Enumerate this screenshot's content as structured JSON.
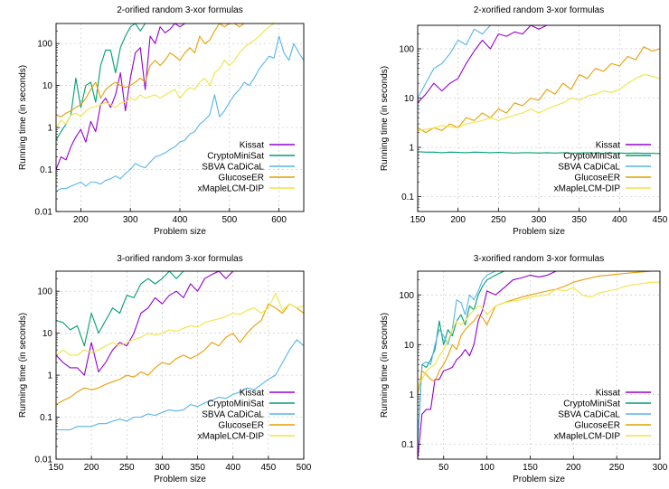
{
  "series_names": [
    "Kissat",
    "CryptoMiniSat",
    "SBVA CaDiCaL",
    "GlucoseER",
    "xMapleLCM-DIP"
  ],
  "series_colors": [
    "#9400d3",
    "#009e73",
    "#56b4e9",
    "#e69f00",
    "#f0e442"
  ],
  "chart_data": [
    {
      "type": "line",
      "title": "2-orified random 3-xor formulas",
      "xlabel": "Problem size",
      "ylabel": "Running time (in seconds)",
      "xscale": "linear",
      "yscale": "log",
      "xlim": [
        150,
        650
      ],
      "ylim": [
        0.01,
        300
      ],
      "xticks": [
        200,
        300,
        400,
        500,
        600
      ],
      "yticks": [
        0.01,
        0.1,
        1,
        10,
        100
      ],
      "ytick_labels": [
        "0.01",
        "0.1",
        "1",
        "10",
        "100"
      ],
      "grid": true,
      "legend": "bottom-right",
      "x": [
        150,
        160,
        170,
        180,
        190,
        200,
        210,
        220,
        230,
        240,
        250,
        260,
        270,
        280,
        290,
        300,
        310,
        320,
        330,
        340,
        350,
        360,
        370,
        380,
        390,
        400,
        410,
        420,
        430,
        440,
        450,
        460,
        470,
        480,
        490,
        500,
        510,
        520,
        530,
        540,
        550,
        560,
        570,
        580,
        590,
        600,
        610,
        620,
        630,
        640,
        650
      ],
      "series": [
        {
          "name": "Kissat",
          "values": [
            0.1,
            0.2,
            0.17,
            0.35,
            0.6,
            0.9,
            0.45,
            1.4,
            0.8,
            3.5,
            5,
            3,
            6,
            20,
            2.5,
            15,
            60,
            80,
            8,
            150,
            100,
            250,
            180,
            220,
            300,
            250,
            300,
            300,
            300,
            300,
            300,
            300,
            300,
            300,
            300,
            300,
            300,
            300,
            300,
            300,
            300,
            300,
            300,
            300,
            300,
            300,
            300,
            300,
            300,
            300,
            300
          ]
        },
        {
          "name": "CryptoMiniSat",
          "values": [
            0.5,
            0.8,
            1.2,
            2,
            15,
            3,
            10,
            12,
            4,
            30,
            70,
            70,
            20,
            80,
            150,
            250,
            300,
            200,
            300,
            300,
            300,
            300,
            300,
            300,
            300,
            300,
            300,
            300,
            300,
            300,
            300,
            300,
            300,
            300,
            300,
            300,
            300,
            300,
            300,
            300,
            300,
            300,
            300,
            300,
            300,
            300,
            300,
            300,
            300,
            300,
            300
          ]
        },
        {
          "name": "SBVA CaDiCaL",
          "values": [
            0.03,
            0.035,
            0.035,
            0.04,
            0.045,
            0.05,
            0.04,
            0.05,
            0.05,
            0.045,
            0.055,
            0.06,
            0.07,
            0.06,
            0.08,
            0.1,
            0.14,
            0.12,
            0.11,
            0.15,
            0.2,
            0.22,
            0.25,
            0.3,
            0.35,
            0.45,
            0.5,
            0.7,
            0.8,
            1.2,
            1.5,
            2,
            6,
            1.8,
            2.5,
            4,
            6,
            8,
            12,
            10,
            15,
            25,
            35,
            50,
            45,
            150,
            60,
            40,
            100,
            60,
            40
          ]
        },
        {
          "name": "GlucoseER",
          "values": [
            2,
            1.8,
            2.2,
            2.5,
            3,
            3.5,
            5,
            8,
            12,
            5,
            8,
            10,
            12,
            10,
            9,
            10,
            12,
            15,
            12,
            30,
            40,
            30,
            40,
            60,
            50,
            40,
            60,
            80,
            60,
            150,
            100,
            120,
            200,
            300,
            250,
            300,
            300,
            250,
            300,
            300,
            300,
            300,
            300,
            300,
            300,
            300,
            300,
            300,
            300,
            300,
            300
          ]
        },
        {
          "name": "xMapleLCM-DIP",
          "values": [
            1,
            1.5,
            1.2,
            2,
            2.2,
            1.8,
            2.5,
            3,
            3.2,
            3.5,
            4,
            3.5,
            3,
            3.8,
            4,
            5,
            4.5,
            6,
            5,
            5.5,
            6,
            5,
            6,
            7,
            8,
            5,
            7,
            9,
            8,
            12,
            15,
            10,
            20,
            25,
            40,
            30,
            40,
            60,
            80,
            100,
            120,
            150,
            200,
            250,
            300,
            300,
            300,
            300,
            300,
            300,
            300
          ]
        }
      ]
    },
    {
      "type": "line",
      "title": "2-xorified random 3-xor formulas",
      "xlabel": "Problem size",
      "ylabel": "Running time (in seconds)",
      "xscale": "linear",
      "yscale": "log",
      "xlim": [
        150,
        450
      ],
      "ylim": [
        0.05,
        300
      ],
      "xticks": [
        150,
        200,
        250,
        300,
        350,
        400,
        450
      ],
      "yticks": [
        0.1,
        1,
        10,
        100
      ],
      "ytick_labels": [
        "0.1",
        "1",
        "10",
        "100"
      ],
      "grid": true,
      "legend": "bottom-right",
      "x": [
        150,
        160,
        170,
        180,
        190,
        200,
        210,
        220,
        230,
        240,
        250,
        260,
        270,
        280,
        290,
        300,
        310,
        320,
        330,
        340,
        350,
        360,
        370,
        380,
        390,
        400,
        410,
        420,
        430,
        440,
        450
      ],
      "series": [
        {
          "name": "Kissat",
          "values": [
            8,
            12,
            20,
            14,
            20,
            25,
            50,
            90,
            150,
            100,
            200,
            180,
            220,
            200,
            300,
            250,
            300,
            300,
            300,
            300,
            300,
            300,
            300,
            300,
            300,
            300,
            300,
            300,
            300,
            300,
            300
          ]
        },
        {
          "name": "CryptoMiniSat",
          "values": [
            0.82,
            0.8,
            0.8,
            0.78,
            0.8,
            0.79,
            0.78,
            0.8,
            0.79,
            0.78,
            0.79,
            0.78,
            0.77,
            0.78,
            0.78,
            0.77,
            0.78,
            0.77,
            0.78,
            0.77,
            0.77,
            0.78,
            0.77,
            0.76,
            0.77,
            0.77,
            0.76,
            0.77,
            0.76,
            0.76,
            0.75
          ]
        },
        {
          "name": "SBVA CaDiCaL",
          "values": [
            10,
            20,
            40,
            50,
            80,
            150,
            120,
            250,
            200,
            300,
            300,
            300,
            300,
            300,
            300,
            300,
            300,
            300,
            300,
            300,
            300,
            300,
            300,
            300,
            300,
            300,
            300,
            300,
            300,
            300,
            300
          ]
        },
        {
          "name": "GlucoseER",
          "values": [
            2.5,
            2,
            2.5,
            2.2,
            3,
            2.5,
            4,
            3.5,
            5,
            4,
            6,
            5,
            8,
            7,
            10,
            9,
            15,
            12,
            20,
            15,
            30,
            25,
            40,
            35,
            50,
            45,
            70,
            60,
            110,
            90,
            100
          ]
        },
        {
          "name": "xMapleLCM-DIP",
          "values": [
            2.2,
            2.3,
            2.5,
            2.8,
            2.6,
            2.5,
            3,
            3.2,
            3.5,
            4,
            3.5,
            4,
            4.5,
            5,
            6,
            5,
            6,
            7,
            8,
            10,
            9,
            11,
            12,
            14,
            13,
            15,
            20,
            25,
            30,
            28,
            25
          ]
        }
      ]
    },
    {
      "type": "line",
      "title": "3-orified random 3-xor formulas",
      "xlabel": "Problem size",
      "ylabel": "Running time (in seconds)",
      "xscale": "linear",
      "yscale": "log",
      "xlim": [
        150,
        500
      ],
      "ylim": [
        0.01,
        300
      ],
      "xticks": [
        150,
        200,
        250,
        300,
        350,
        400,
        450,
        500
      ],
      "yticks": [
        0.01,
        0.1,
        1,
        10,
        100
      ],
      "ytick_labels": [
        "0.01",
        "0.1",
        "1",
        "10",
        "100"
      ],
      "grid": true,
      "legend": "bottom-right",
      "x": [
        150,
        160,
        170,
        180,
        190,
        200,
        210,
        220,
        230,
        240,
        250,
        260,
        270,
        280,
        290,
        300,
        310,
        320,
        330,
        340,
        350,
        360,
        370,
        380,
        390,
        400,
        410,
        420,
        430,
        440,
        450,
        460,
        470,
        480,
        490,
        500
      ],
      "series": [
        {
          "name": "Kissat",
          "values": [
            3,
            2,
            1.5,
            1.5,
            1,
            6,
            1.2,
            2,
            4,
            6,
            5,
            10,
            30,
            40,
            70,
            50,
            80,
            100,
            70,
            150,
            100,
            200,
            250,
            300,
            200,
            300,
            300,
            300,
            300,
            300,
            300,
            300,
            300,
            300,
            300,
            300
          ]
        },
        {
          "name": "CryptoMiniSat",
          "values": [
            20,
            18,
            12,
            15,
            5,
            30,
            10,
            20,
            40,
            30,
            80,
            70,
            150,
            200,
            150,
            200,
            300,
            200,
            300,
            300,
            300,
            300,
            300,
            300,
            300,
            300,
            300,
            300,
            300,
            300,
            300,
            300,
            300,
            300,
            300,
            300
          ]
        },
        {
          "name": "SBVA CaDiCaL",
          "values": [
            0.05,
            0.05,
            0.05,
            0.06,
            0.06,
            0.06,
            0.07,
            0.07,
            0.08,
            0.09,
            0.08,
            0.1,
            0.1,
            0.12,
            0.11,
            0.13,
            0.15,
            0.14,
            0.15,
            0.2,
            0.18,
            0.22,
            0.25,
            0.3,
            0.28,
            0.35,
            0.4,
            0.5,
            0.45,
            0.6,
            0.8,
            1,
            2,
            4,
            7,
            5
          ]
        },
        {
          "name": "GlucoseER",
          "values": [
            0.2,
            0.25,
            0.3,
            0.4,
            0.5,
            0.45,
            0.5,
            0.6,
            0.7,
            0.8,
            1,
            0.9,
            1.2,
            1,
            1.5,
            2,
            1.8,
            2.5,
            3,
            2.5,
            3,
            4,
            6,
            5,
            8,
            10,
            6,
            10,
            15,
            20,
            50,
            40,
            30,
            50,
            40,
            30
          ]
        },
        {
          "name": "xMapleLCM-DIP",
          "values": [
            3,
            4,
            3,
            3,
            4,
            3.5,
            4,
            5,
            6,
            5,
            6,
            7,
            8,
            10,
            9,
            10,
            12,
            11,
            13,
            15,
            14,
            18,
            20,
            22,
            25,
            30,
            28,
            35,
            40,
            30,
            40,
            90,
            35,
            50,
            40,
            45
          ]
        }
      ]
    },
    {
      "type": "line",
      "title": "3-xorified random 3-xor formulas",
      "xlabel": "Problem size",
      "ylabel": "Running time (in seconds)",
      "xscale": "linear",
      "yscale": "log",
      "xlim": [
        20,
        300
      ],
      "ylim": [
        0.05,
        300
      ],
      "xticks": [
        50,
        100,
        150,
        200,
        250,
        300
      ],
      "yticks": [
        0.1,
        1,
        10,
        100
      ],
      "ytick_labels": [
        "0.1",
        "1",
        "10",
        "100"
      ],
      "grid": true,
      "legend": "bottom-right",
      "x": [
        20,
        25,
        30,
        35,
        40,
        45,
        50,
        55,
        60,
        65,
        70,
        75,
        80,
        85,
        90,
        95,
        100,
        110,
        120,
        130,
        140,
        150,
        160,
        170,
        180,
        190,
        200,
        210,
        220,
        230,
        240,
        250,
        260,
        270,
        280,
        290,
        300
      ],
      "series": [
        {
          "name": "Kissat",
          "values": [
            0.05,
            0.4,
            0.5,
            0.5,
            2,
            2,
            3,
            3.2,
            3.5,
            5,
            6,
            8,
            6,
            10,
            30,
            50,
            120,
            100,
            140,
            200,
            220,
            250,
            230,
            250,
            300,
            300,
            300,
            300,
            300,
            300,
            300,
            300,
            300,
            300,
            300,
            300,
            300
          ]
        },
        {
          "name": "CryptoMiniSat",
          "values": [
            0.1,
            4,
            3.5,
            5,
            8,
            30,
            10,
            20,
            15,
            30,
            40,
            25,
            60,
            50,
            100,
            150,
            200,
            250,
            300,
            300,
            300,
            300,
            300,
            300,
            300,
            300,
            300,
            300,
            300,
            300,
            300,
            300,
            300,
            300,
            300,
            300,
            300
          ]
        },
        {
          "name": "SBVA CaDiCaL",
          "values": [
            0.1,
            4,
            4.5,
            4,
            10,
            20,
            15,
            10,
            20,
            80,
            70,
            40,
            100,
            80,
            120,
            200,
            250,
            300,
            300,
            300,
            300,
            300,
            300,
            300,
            300,
            300,
            300,
            300,
            300,
            300,
            300,
            300,
            300,
            300,
            300,
            300,
            300
          ]
        },
        {
          "name": "GlucoseER",
          "values": [
            1,
            3,
            2.5,
            2,
            1.8,
            3,
            4,
            6,
            10,
            8,
            15,
            20,
            25,
            30,
            40,
            35,
            25,
            60,
            70,
            80,
            90,
            100,
            110,
            120,
            130,
            150,
            180,
            200,
            220,
            240,
            250,
            260,
            270,
            280,
            290,
            300,
            300
          ]
        },
        {
          "name": "xMapleLCM-DIP",
          "values": [
            1.5,
            2,
            3,
            3.5,
            4,
            6,
            8,
            12,
            20,
            30,
            25,
            30,
            40,
            50,
            60,
            55,
            40,
            60,
            70,
            75,
            80,
            90,
            95,
            100,
            130,
            120,
            140,
            100,
            90,
            110,
            120,
            130,
            150,
            160,
            170,
            180,
            180
          ]
        }
      ]
    }
  ]
}
